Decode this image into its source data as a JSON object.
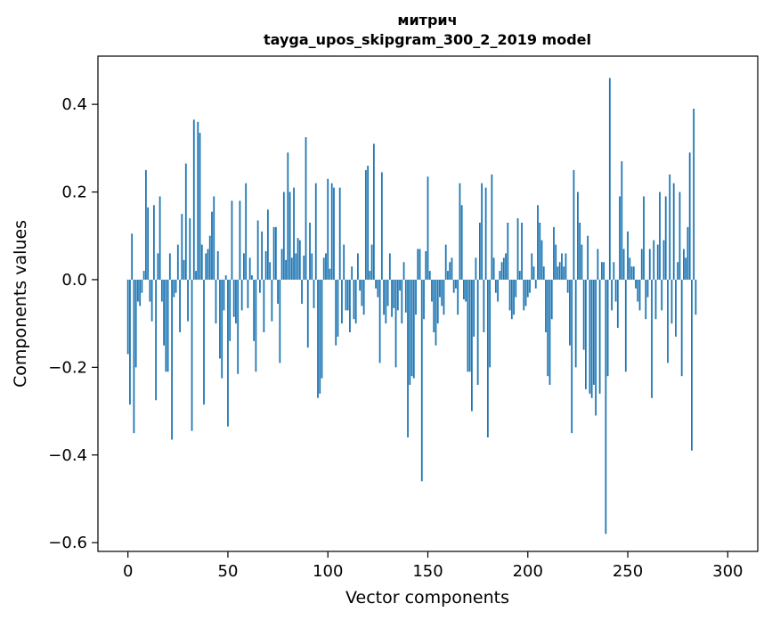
{
  "chart_data": {
    "type": "bar",
    "title_lines": [
      "митрич",
      "tayga_upos_skipgram_300_2_2019 model"
    ],
    "xlabel": "Vector components",
    "ylabel": "Components values",
    "xlim": [
      -15,
      315
    ],
    "ylim": [
      -0.62,
      0.51
    ],
    "xticks": [
      0,
      50,
      100,
      150,
      200,
      250,
      300
    ],
    "xtick_labels": [
      "0",
      "50",
      "100",
      "150",
      "200",
      "250",
      "300"
    ],
    "yticks": [
      -0.6,
      -0.4,
      -0.2,
      0.0,
      0.2,
      0.4
    ],
    "ytick_labels": [
      "−0.6",
      "−0.4",
      "−0.2",
      "0.0",
      "0.2",
      "0.4"
    ],
    "bar_color": "#1f77b4",
    "grid": false,
    "values": [
      -0.17,
      -0.285,
      0.105,
      -0.35,
      -0.2,
      -0.05,
      -0.06,
      -0.03,
      0.02,
      0.25,
      0.165,
      -0.05,
      -0.095,
      0.17,
      -0.275,
      0.06,
      0.19,
      -0.05,
      -0.15,
      -0.21,
      -0.21,
      0.06,
      -0.365,
      -0.04,
      -0.03,
      0.08,
      -0.12,
      0.15,
      0.045,
      0.265,
      -0.095,
      0.14,
      -0.345,
      0.365,
      0.02,
      0.36,
      0.335,
      0.08,
      -0.285,
      0.06,
      0.07,
      0.1,
      0.155,
      0.19,
      -0.1,
      0.065,
      -0.18,
      -0.225,
      -0.07,
      0.01,
      -0.335,
      -0.14,
      0.18,
      -0.085,
      -0.1,
      -0.215,
      0.18,
      -0.07,
      0.06,
      0.22,
      -0.065,
      0.05,
      0.01,
      -0.14,
      -0.21,
      0.135,
      -0.03,
      0.11,
      -0.12,
      0.065,
      0.16,
      0.04,
      -0.095,
      0.12,
      0.12,
      -0.055,
      -0.19,
      0.07,
      0.2,
      0.045,
      0.29,
      0.2,
      0.05,
      0.21,
      0.06,
      0.095,
      0.09,
      -0.055,
      0.055,
      0.325,
      -0.155,
      0.13,
      0.06,
      -0.065,
      0.22,
      -0.27,
      -0.26,
      -0.225,
      0.05,
      0.06,
      0.23,
      0.025,
      0.22,
      0.21,
      -0.15,
      -0.13,
      0.21,
      -0.1,
      0.08,
      -0.07,
      -0.07,
      -0.12,
      0.03,
      -0.09,
      -0.1,
      0.06,
      -0.025,
      -0.06,
      -0.08,
      0.25,
      0.26,
      0.02,
      0.08,
      0.31,
      -0.02,
      -0.04,
      -0.19,
      0.245,
      -0.08,
      -0.1,
      -0.06,
      0.06,
      -0.085,
      -0.065,
      -0.2,
      -0.07,
      -0.025,
      -0.1,
      0.04,
      -0.075,
      -0.36,
      -0.24,
      -0.22,
      -0.225,
      -0.08,
      0.07,
      0.07,
      -0.46,
      -0.09,
      0.065,
      0.235,
      0.02,
      -0.05,
      -0.12,
      -0.15,
      -0.1,
      -0.04,
      -0.06,
      -0.08,
      0.08,
      0.02,
      0.04,
      0.05,
      -0.03,
      -0.02,
      -0.08,
      0.22,
      0.17,
      -0.045,
      -0.05,
      -0.21,
      -0.21,
      -0.3,
      -0.13,
      0.05,
      -0.24,
      0.13,
      0.22,
      -0.12,
      0.21,
      -0.36,
      -0.2,
      0.24,
      0.05,
      -0.03,
      -0.05,
      0.02,
      0.04,
      0.05,
      0.06,
      0.13,
      -0.07,
      -0.09,
      -0.08,
      -0.04,
      0.14,
      0.02,
      0.13,
      -0.07,
      -0.06,
      -0.04,
      -0.03,
      0.06,
      0.03,
      -0.02,
      0.17,
      0.13,
      0.09,
      0.03,
      -0.12,
      -0.22,
      -0.24,
      -0.09,
      0.12,
      0.08,
      0.03,
      0.04,
      0.06,
      0.03,
      0.06,
      -0.03,
      -0.15,
      -0.35,
      0.25,
      -0.2,
      0.2,
      0.13,
      0.08,
      -0.16,
      -0.25,
      0.1,
      -0.26,
      -0.27,
      -0.24,
      -0.31,
      0.07,
      -0.26,
      0.04,
      0.04,
      -0.58,
      -0.22,
      0.46,
      -0.07,
      0.04,
      -0.05,
      -0.11,
      0.19,
      0.27,
      0.07,
      -0.21,
      0.11,
      0.05,
      0.03,
      0.03,
      -0.02,
      -0.05,
      -0.07,
      0.07,
      0.19,
      -0.09,
      -0.04,
      0.07,
      -0.27,
      0.09,
      -0.09,
      0.08,
      0.2,
      -0.07,
      0.09,
      0.19,
      -0.19,
      0.24,
      -0.1,
      0.22,
      -0.13,
      0.04,
      0.2,
      -0.22,
      0.07,
      0.05,
      0.12,
      0.29,
      -0.39,
      0.39,
      -0.08
    ]
  }
}
